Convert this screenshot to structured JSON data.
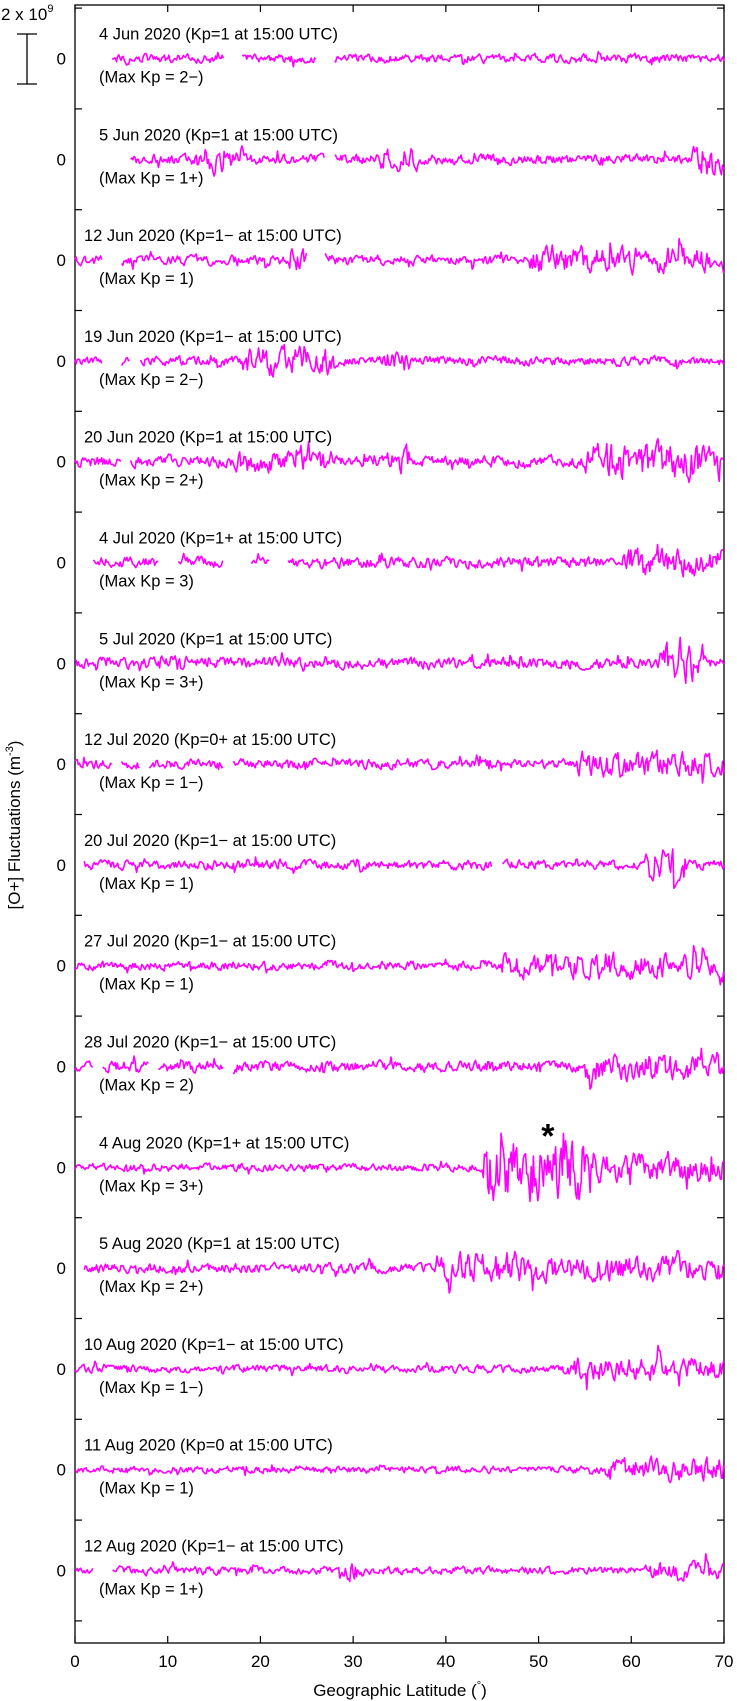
{
  "chart_data": {
    "type": "line",
    "ylabel": "[O+] Fluctuations (m",
    "ylabel_exp": "-3",
    "ylabel_close": ")",
    "xlabel": "Geographic Latitude (",
    "xlabel_deg": "°",
    "xlabel_close": ")",
    "xlim": [
      0,
      70
    ],
    "xticks": [
      "0",
      "10",
      "20",
      "30",
      "40",
      "50",
      "60",
      "70"
    ],
    "scale_bar": {
      "mantissa": "2 x 10",
      "exponent": "9",
      "value_m3": 2000000000
    },
    "zero_label": "0",
    "series_color": "#ff00ff",
    "annotation": {
      "text": "*",
      "panel": 11,
      "x": 51
    },
    "panels": [
      {
        "title": "4 Jun 2020 (Kp=1 at 15:00 UTC)",
        "maxkp": "(Max Kp = 2−)",
        "start": 4,
        "gaps": [
          [
            16,
            18
          ],
          [
            26,
            28
          ]
        ],
        "amp": [
          [
            0,
            70,
            0.28
          ]
        ]
      },
      {
        "title": "5 Jun 2020 (Kp=1 at 15:00 UTC)",
        "maxkp": "(Max Kp = 1+)",
        "start": 6,
        "gaps": [
          [
            27,
            28
          ]
        ],
        "amp": [
          [
            0,
            70,
            0.32
          ],
          [
            14,
            18,
            0.9
          ],
          [
            33,
            37,
            0.8
          ],
          [
            66,
            70,
            1.1
          ]
        ]
      },
      {
        "title": "12 Jun 2020 (Kp=1− at 15:00 UTC)",
        "maxkp": "(Max Kp = 1)",
        "start": 0,
        "gaps": [
          [
            3,
            5
          ],
          [
            25,
            27
          ]
        ],
        "amp": [
          [
            0,
            70,
            0.32
          ],
          [
            23,
            26,
            0.9
          ],
          [
            49,
            70,
            0.85
          ]
        ]
      },
      {
        "title": "19 Jun 2020 (Kp=1− at 15:00 UTC)",
        "maxkp": "(Max Kp = 2−)",
        "start": 0,
        "gaps": [
          [
            3,
            5
          ],
          [
            6,
            7
          ]
        ],
        "amp": [
          [
            0,
            70,
            0.3
          ],
          [
            18,
            28,
            0.9
          ],
          [
            33,
            36,
            0.7
          ]
        ]
      },
      {
        "title": "20 Jun 2020 (Kp=1 at 15:00 UTC)",
        "maxkp": "(Max Kp = 2+)",
        "start": 0,
        "gaps": [
          [
            5,
            6
          ]
        ],
        "amp": [
          [
            0,
            70,
            0.35
          ],
          [
            17,
            27,
            0.7
          ],
          [
            35,
            36,
            1.0
          ],
          [
            55,
            70,
            1.2
          ]
        ]
      },
      {
        "title": "4 Jul 2020 (Kp=1+ at 15:00 UTC)",
        "maxkp": "(Max Kp = 3)",
        "start": 2,
        "gaps": [
          [
            9,
            11
          ],
          [
            16,
            19
          ],
          [
            21,
            23
          ]
        ],
        "amp": [
          [
            0,
            70,
            0.35
          ],
          [
            59,
            70,
            0.8
          ]
        ]
      },
      {
        "title": "5 Jul 2020 (Kp=1 at 15:00 UTC)",
        "maxkp": "(Max Kp = 3+)",
        "start": 0,
        "gaps": [],
        "amp": [
          [
            0,
            70,
            0.35
          ],
          [
            9,
            12,
            0.6
          ],
          [
            63,
            68,
            1.3
          ]
        ]
      },
      {
        "title": "12 Jul 2020 (Kp=0+ at 15:00 UTC)",
        "maxkp": "(Max Kp = 1−)",
        "start": 0,
        "gaps": [
          [
            4,
            5
          ],
          [
            7,
            8
          ],
          [
            16,
            17
          ]
        ],
        "amp": [
          [
            0,
            70,
            0.3
          ],
          [
            54,
            70,
            0.8
          ]
        ]
      },
      {
        "title": "20 Jul 2020 (Kp=1− at 15:00 UTC)",
        "maxkp": "(Max Kp = 1)",
        "start": 1,
        "gaps": [
          [
            45,
            46
          ]
        ],
        "amp": [
          [
            0,
            70,
            0.3
          ],
          [
            61,
            66,
            1.1
          ]
        ]
      },
      {
        "title": "27 Jul 2020 (Kp=1− at 15:00 UTC)",
        "maxkp": "(Max Kp = 1)",
        "start": 0,
        "gaps": [],
        "amp": [
          [
            0,
            70,
            0.28
          ],
          [
            46,
            70,
            0.85
          ]
        ]
      },
      {
        "title": "28 Jul 2020 (Kp=1− at 15:00 UTC)",
        "maxkp": "(Max Kp = 2)",
        "start": 0,
        "gaps": [
          [
            2,
            3
          ],
          [
            8,
            9
          ],
          [
            16,
            17
          ]
        ],
        "amp": [
          [
            0,
            70,
            0.35
          ],
          [
            55,
            70,
            0.9
          ]
        ]
      },
      {
        "title": "4 Aug 2020 (Kp=1+ at 15:00 UTC)",
        "maxkp": "(Max Kp = 3+)",
        "start": 0,
        "gaps": [],
        "amp": [
          [
            0,
            70,
            0.25
          ],
          [
            44,
            56,
            2.1
          ],
          [
            56,
            70,
            0.9
          ]
        ]
      },
      {
        "title": "5 Aug 2020 (Kp=1 at 15:00 UTC)",
        "maxkp": "(Max Kp = 2+)",
        "start": 1,
        "gaps": [],
        "amp": [
          [
            0,
            70,
            0.3
          ],
          [
            39,
            48,
            1.0
          ],
          [
            48,
            70,
            0.8
          ]
        ]
      },
      {
        "title": "10 Aug 2020 (Kp=1− at 15:00 UTC)",
        "maxkp": "(Max Kp = 1−)",
        "start": 0,
        "gaps": [],
        "amp": [
          [
            0,
            70,
            0.25
          ],
          [
            53,
            70,
            0.7
          ]
        ]
      },
      {
        "title": "11 Aug 2020 (Kp=0 at 15:00 UTC)",
        "maxkp": "(Max Kp = 1)",
        "start": 0,
        "gaps": [],
        "amp": [
          [
            0,
            70,
            0.22
          ],
          [
            57,
            70,
            0.75
          ]
        ]
      },
      {
        "title": "12 Aug 2020 (Kp=1− at 15:00 UTC)",
        "maxkp": "(Max Kp = 1+)",
        "start": 0,
        "gaps": [
          [
            2,
            4
          ]
        ],
        "amp": [
          [
            0,
            70,
            0.25
          ],
          [
            28,
            31,
            0.6
          ],
          [
            62,
            70,
            0.55
          ]
        ]
      }
    ]
  }
}
